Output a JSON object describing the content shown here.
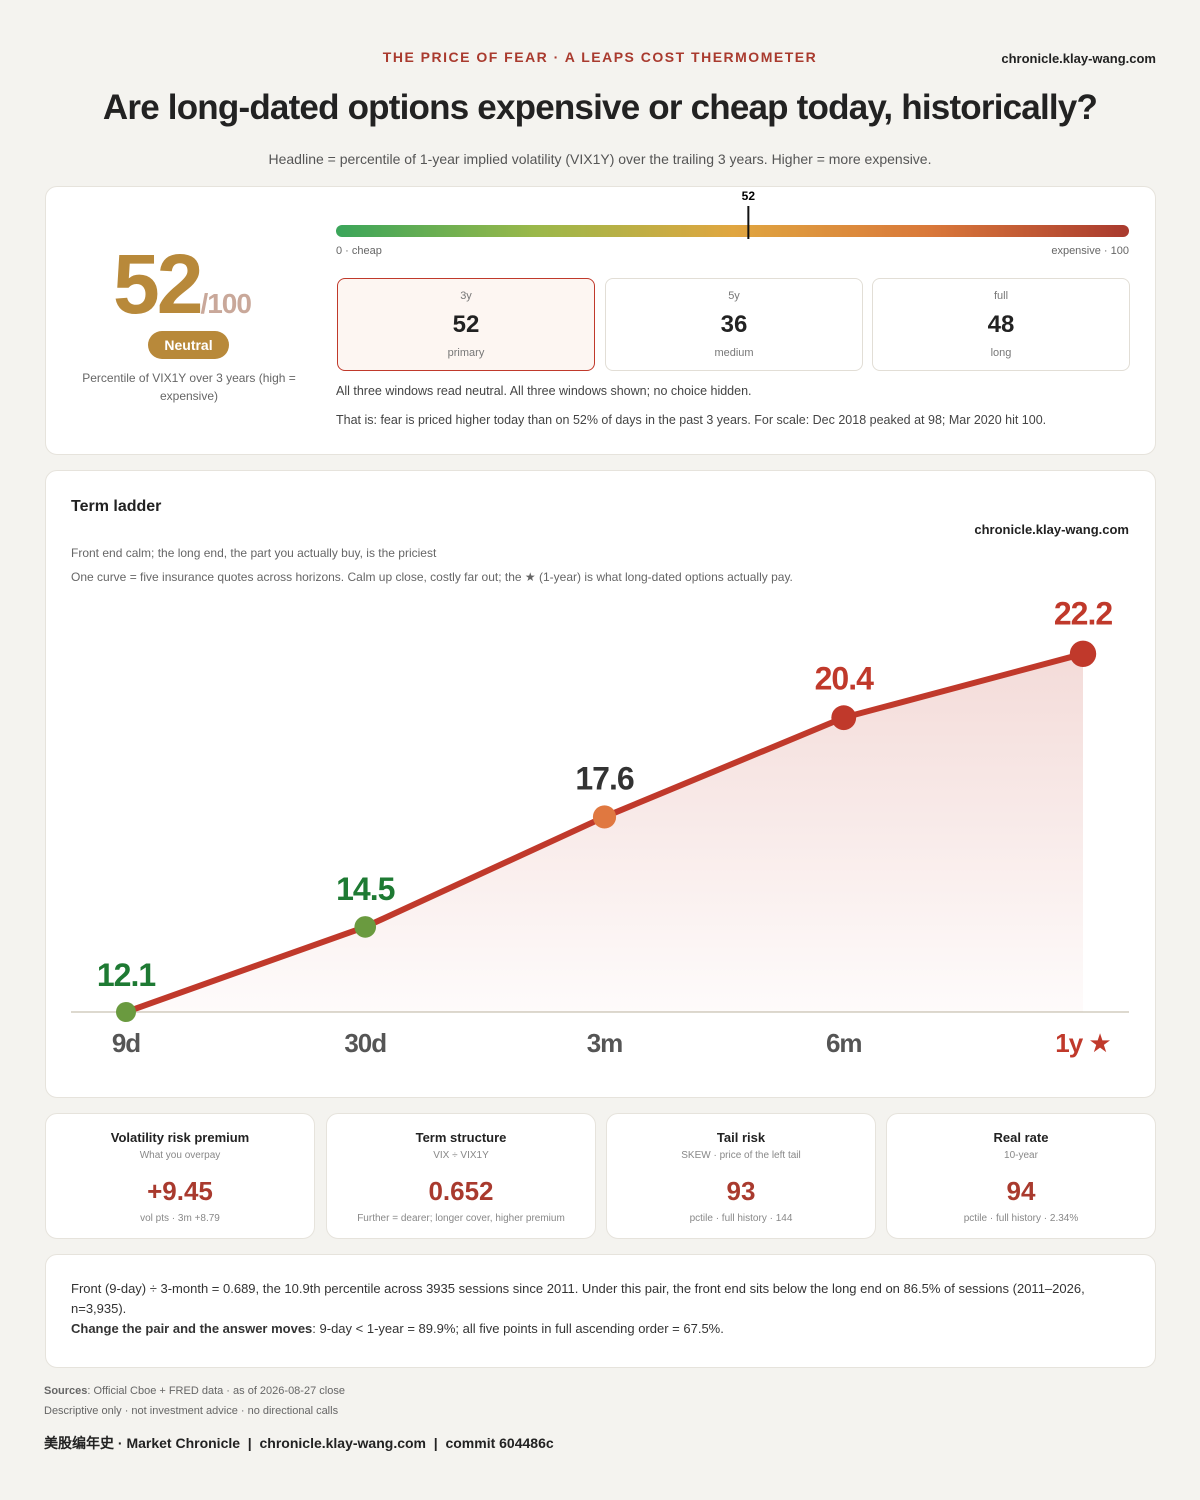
{
  "header": {
    "kicker": "THE PRICE OF FEAR · A LEAPS COST THERMOMETER",
    "site": "chronicle.klay-wang.com",
    "title": "Are long-dated options expensive or cheap today, historically?",
    "subtitle": "Headline = percentile of 1-year implied volatility (VIX1Y) over the trailing 3 years. Higher = more expensive."
  },
  "headline": {
    "score": 52,
    "score_suffix": "/100",
    "badge": "Neutral",
    "caption": "Percentile of VIX1Y over 3 years (high = expensive)",
    "gauge": {
      "scale": [
        0,
        100
      ],
      "min_label": "0 · cheap",
      "max_label": "expensive · 100",
      "colors": [
        "#3aa55a",
        "#9ab84a",
        "#e0a640",
        "#d9783a",
        "#a93a2e"
      ]
    },
    "windows": [
      {
        "label": "3y",
        "value": 52,
        "note": "primary"
      },
      {
        "label": "5y",
        "value": 36,
        "note": "medium"
      },
      {
        "label": "full",
        "value": 48,
        "note": "long"
      }
    ],
    "lines": [
      "All three windows read neutral. All three windows shown; no choice hidden.",
      "That is: fear is priced higher today than on 52% of days in the past 3 years. For scale: Dec 2018 peaked at 98; Mar 2020 hit 100."
    ]
  },
  "chart_data": {
    "type": "line",
    "title": "Term ladder",
    "watermark": "chronicle.klay-wang.com",
    "subtitle_lines": [
      "Front end calm; the long end, the part you actually buy, is the priciest",
      "One curve = five insurance quotes across horizons. Calm up close, costly far out; the ★ (1-year) is what long-dated options actually pay."
    ],
    "categories": [
      "9d",
      "30d",
      "3m",
      "6m",
      "1y ★"
    ],
    "values": [
      12.1,
      14.5,
      17.6,
      20.4,
      22.2
    ],
    "color": "#c0392b",
    "point_colors": [
      "#6a9a3f",
      "#6a9a3f",
      "#e07840",
      "#c0392b",
      "#c0392b"
    ],
    "label_colors": [
      "#1e7a33",
      "#1e7a33",
      "#333333",
      "#c0392b",
      "#c0392b"
    ],
    "category_colors": [
      "#555555",
      "#555555",
      "#555555",
      "#555555",
      "#c0392b"
    ],
    "ylim": [
      12.1,
      24
    ]
  },
  "metrics": [
    {
      "title": "Volatility risk premium",
      "subtitle": "What you overpay",
      "value": "+9.45",
      "note": "vol pts · 3m +8.79"
    },
    {
      "title": "Term structure",
      "subtitle": "VIX ÷ VIX1Y",
      "value": "0.652",
      "note": "Further = dearer; longer cover, higher premium"
    },
    {
      "title": "Tail risk",
      "subtitle": "SKEW · price of the left tail",
      "value": "93",
      "note": "pctile · full history · 144"
    },
    {
      "title": "Real rate",
      "subtitle": "10-year",
      "value": "94",
      "note": "pctile · full history · 2.34%"
    }
  ],
  "notes": {
    "text": "Front (9-day) ÷ 3-month = 0.689, the 10.9th percentile across 3935 sessions since 2011. Under this pair, the front end sits below the long end on 86.5% of sessions (2011–2026, n=3,935).",
    "bold": "Change the pair and the answer moves",
    "rest": ": 9-day < 1-year = 89.9%; all five points in full ascending order = 67.5%."
  },
  "footer": {
    "sources_label": "Sources",
    "sources": ": Official Cboe + FRED data · as of 2026-08-27 close",
    "disclaimer": "Descriptive only · not investment advice · no directional calls",
    "credit": "美股编年史 · Market Chronicle  |  chronicle.klay-wang.com  |  commit 604486c"
  }
}
